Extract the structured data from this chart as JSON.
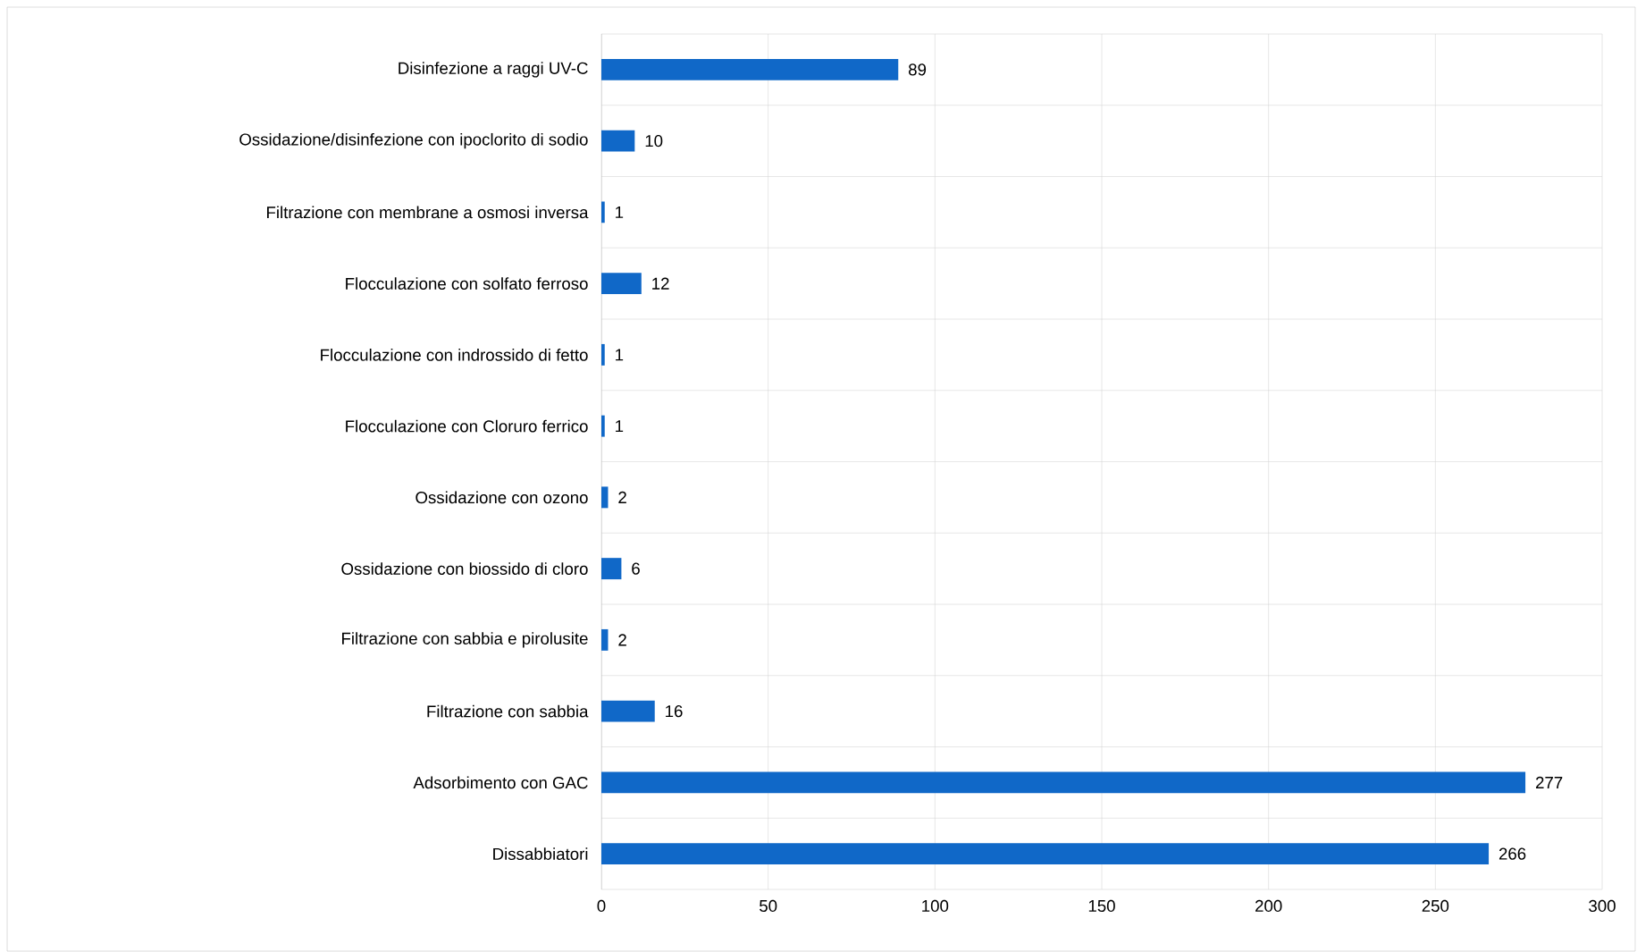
{
  "chart_data": {
    "type": "bar",
    "orientation": "horizontal",
    "categories": [
      "Disinfezione a raggi UV-C",
      "Ossidazione/disinfezione con ipoclorito di sodio",
      "Filtrazione con membrane a osmosi inversa",
      "Flocculazione con solfato ferroso",
      "Flocculazione con indrossido di fetto",
      "Flocculazione con Cloruro ferrico",
      "Ossidazione con ozono",
      "Ossidazione con biossido di cloro",
      "Filtrazione con sabbia e pirolusite",
      "Filtrazione con sabbia",
      "Adsorbimento con GAC",
      "Dissabbiatori"
    ],
    "values": [
      89,
      10,
      1,
      12,
      1,
      1,
      2,
      6,
      2,
      16,
      277,
      266
    ],
    "color": "#1068c8",
    "xlim": [
      0,
      300
    ],
    "xticks": [
      0,
      50,
      100,
      150,
      200,
      250,
      300
    ],
    "grid": "x",
    "data_labels": true
  }
}
